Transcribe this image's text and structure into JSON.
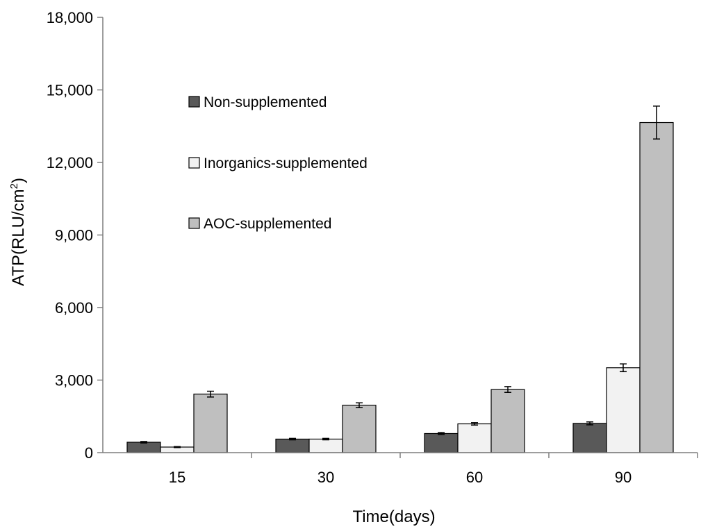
{
  "chart_data": {
    "type": "bar",
    "categories": [
      "15",
      "30",
      "60",
      "90"
    ],
    "series": [
      {
        "name": "Non-supplemented",
        "color": "#595959",
        "values": [
          430,
          560,
          790,
          1210
        ],
        "errors": [
          30,
          30,
          40,
          60
        ]
      },
      {
        "name": "Inorganics-supplemented",
        "color": "#f2f2f2",
        "values": [
          230,
          560,
          1190,
          3510
        ],
        "errors": [
          20,
          30,
          50,
          160
        ]
      },
      {
        "name": "AOC-supplemented",
        "color": "#bfbfbf",
        "values": [
          2420,
          1960,
          2610,
          13650
        ],
        "errors": [
          120,
          100,
          120,
          680
        ]
      }
    ],
    "xlabel": "Time(days)",
    "ylabel": "ATP(RLU/cm",
    "ylabel_superscript": "2",
    "ylabel_suffix": ")",
    "ylim": [
      0,
      18000
    ],
    "yticks": [
      0,
      3000,
      6000,
      9000,
      12000,
      15000,
      18000
    ],
    "ytick_labels": [
      "0",
      "3,000",
      "6,000",
      "9,000",
      "12,000",
      "15,000",
      "18,000"
    ],
    "legend_position": "upper-left inside plot",
    "grid": false
  }
}
